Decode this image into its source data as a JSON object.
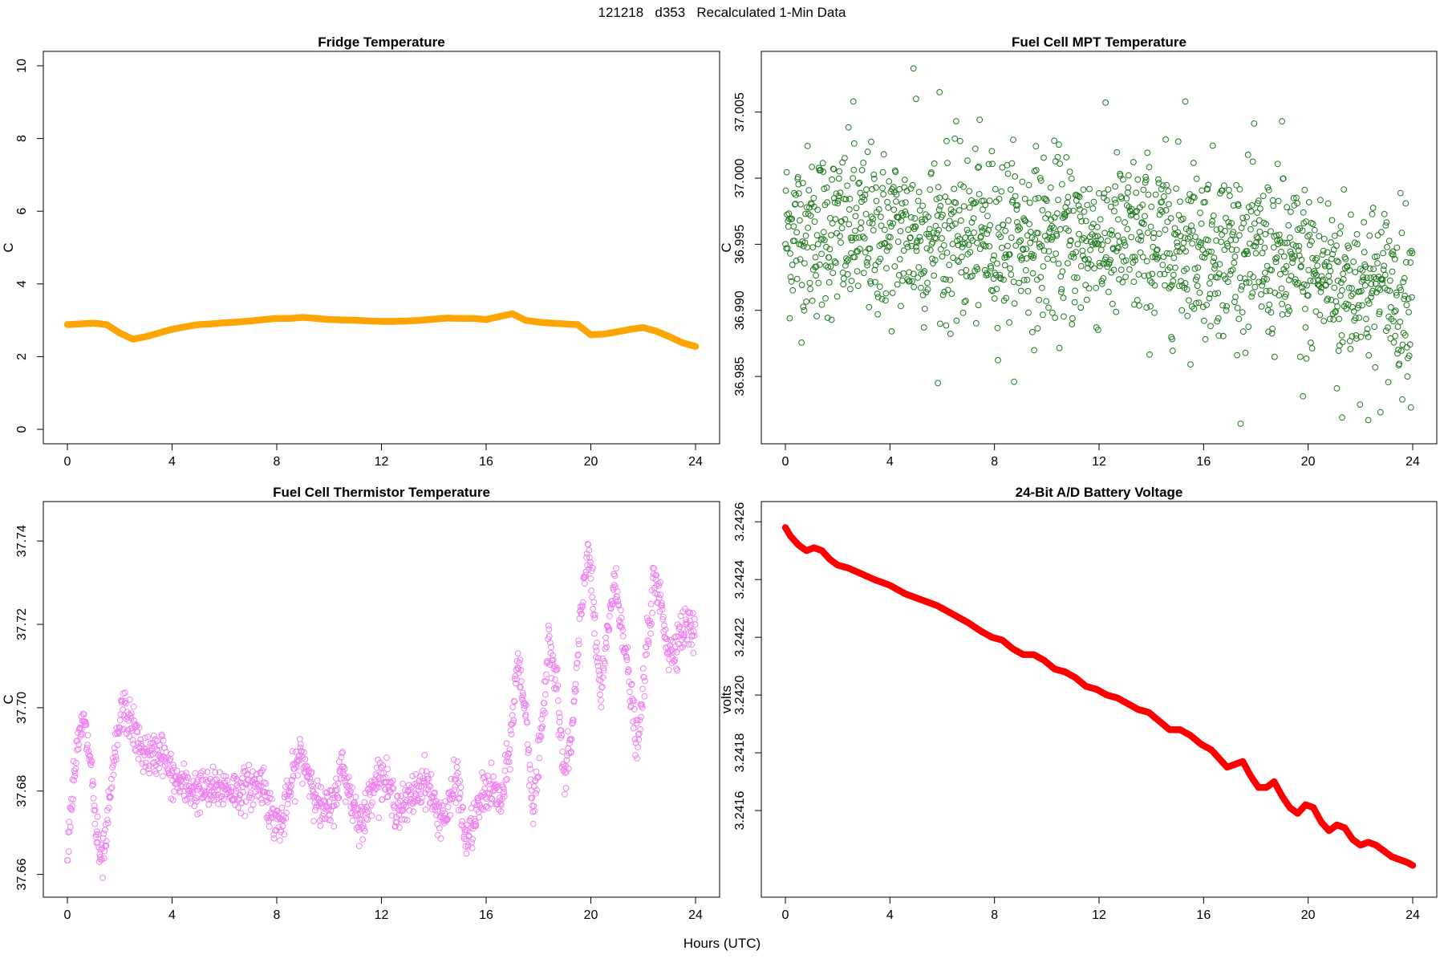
{
  "figure": {
    "title": "121218   d353   Recalculated 1-Min Data",
    "xlabel": "Hours (UTC)"
  },
  "chart_data": [
    {
      "type": "line",
      "title": "Fridge Temperature",
      "xlabel": "",
      "ylabel": "C",
      "xlim": [
        0,
        24
      ],
      "ylim": [
        0,
        10
      ],
      "xticks": [
        0,
        4,
        8,
        12,
        16,
        20,
        24
      ],
      "yticks": [
        0,
        2,
        4,
        6,
        8,
        10
      ],
      "ytick_labels": [
        "0",
        "2",
        "4",
        "6",
        "8",
        "10"
      ],
      "color": "#FFA500",
      "marker": "filled",
      "x": [
        0,
        0.5,
        1,
        1.5,
        2,
        2.5,
        3,
        3.5,
        4,
        4.5,
        5,
        5.5,
        6,
        6.5,
        7,
        7.5,
        8,
        8.5,
        9,
        9.5,
        10,
        10.5,
        11,
        11.5,
        12,
        12.5,
        13,
        13.5,
        14,
        14.5,
        15,
        15.5,
        16,
        16.5,
        17,
        17.5,
        18,
        18.5,
        19,
        19.5,
        20,
        20.5,
        21,
        21.5,
        22,
        22.5,
        23,
        23.5,
        24
      ],
      "y": [
        2.88,
        2.9,
        2.92,
        2.88,
        2.65,
        2.48,
        2.55,
        2.65,
        2.75,
        2.82,
        2.88,
        2.9,
        2.93,
        2.95,
        2.98,
        3.02,
        3.05,
        3.05,
        3.08,
        3.05,
        3.02,
        3.01,
        3.0,
        2.98,
        2.97,
        2.97,
        2.98,
        3.0,
        3.03,
        3.06,
        3.05,
        3.05,
        3.02,
        3.1,
        3.18,
        3.0,
        2.95,
        2.92,
        2.9,
        2.88,
        2.6,
        2.62,
        2.68,
        2.75,
        2.8,
        2.7,
        2.55,
        2.38,
        2.28
      ]
    },
    {
      "type": "scatter",
      "title": "Fuel Cell MPT Temperature",
      "xlabel": "",
      "ylabel": "C",
      "xlim": [
        0,
        24
      ],
      "ylim": [
        36.981,
        37.0085
      ],
      "xticks": [
        0,
        4,
        8,
        12,
        16,
        20,
        24
      ],
      "yticks": [
        36.985,
        36.99,
        36.995,
        37.0,
        37.005
      ],
      "ytick_labels": [
        "36.985",
        "36.990",
        "36.995",
        "37.000",
        "37.005"
      ],
      "color": "#1F7A1F",
      "marker": "open-circle",
      "points_per_hour": 60,
      "series_description": "noisy 1-minute readings; mean about 36.996 in hours 0-16, declining to about 36.991 by hour 24; spread about +/-0.005",
      "trend_anchors": {
        "x": [
          0,
          16,
          24
        ],
        "y": [
          36.996,
          36.995,
          36.991
        ]
      },
      "noise_sd": 0.0032,
      "extremes": [
        [
          4.9,
          37.0083
        ],
        [
          5.0,
          37.006
        ],
        [
          5.9,
          37.0065
        ],
        [
          2.6,
          37.0058
        ],
        [
          15.3,
          37.0058
        ],
        [
          19.0,
          37.0043
        ],
        [
          21.3,
          36.9819
        ],
        [
          22.3,
          36.9817
        ],
        [
          19.8,
          36.9835
        ],
        [
          21.1,
          36.9841
        ]
      ]
    },
    {
      "type": "scatter",
      "title": "Fuel Cell Thermistor Temperature",
      "xlabel": "",
      "ylabel": "C",
      "xlim": [
        0,
        24
      ],
      "ylim": [
        37.658,
        37.746
      ],
      "xticks": [
        0,
        4,
        8,
        12,
        16,
        20,
        24
      ],
      "yticks": [
        37.66,
        37.68,
        37.7,
        37.72,
        37.74
      ],
      "ytick_labels": [
        "37.66",
        "37.68",
        "37.70",
        "37.72",
        "37.74"
      ],
      "color": "#EE82EE",
      "marker": "open-circle",
      "points_per_hour": 60,
      "x": [
        0,
        0.3,
        0.6,
        0.9,
        1.1,
        1.3,
        1.5,
        1.8,
        2.1,
        2.4,
        2.8,
        3.2,
        3.6,
        4.0,
        4.5,
        5.0,
        5.5,
        6.0,
        6.5,
        7.0,
        7.5,
        7.8,
        8.2,
        8.6,
        8.9,
        9.3,
        9.7,
        10.1,
        10.5,
        10.9,
        11.3,
        11.7,
        12.1,
        12.5,
        12.9,
        13.3,
        13.7,
        14.1,
        14.5,
        14.9,
        15.2,
        15.6,
        15.9,
        16.3,
        16.6,
        16.9,
        17.2,
        17.5,
        17.8,
        18.1,
        18.4,
        18.7,
        19.0,
        19.3,
        19.6,
        19.9,
        20.2,
        20.4,
        20.7,
        20.9,
        21.2,
        21.5,
        21.8,
        22.1,
        22.4,
        22.7,
        23.0,
        23.4,
        23.8,
        24
      ],
      "y": [
        37.667,
        37.687,
        37.697,
        37.687,
        37.67,
        37.662,
        37.67,
        37.688,
        37.7,
        37.697,
        37.69,
        37.688,
        37.69,
        37.683,
        37.681,
        37.68,
        37.68,
        37.681,
        37.68,
        37.681,
        37.682,
        37.674,
        37.672,
        37.683,
        37.689,
        37.683,
        37.675,
        37.676,
        37.686,
        37.677,
        37.672,
        37.683,
        37.683,
        37.677,
        37.676,
        37.68,
        37.683,
        37.675,
        37.674,
        37.684,
        37.668,
        37.673,
        37.68,
        37.68,
        37.677,
        37.69,
        37.711,
        37.7,
        37.675,
        37.692,
        37.718,
        37.705,
        37.682,
        37.695,
        37.72,
        37.74,
        37.715,
        37.702,
        37.722,
        37.73,
        37.72,
        37.704,
        37.69,
        37.712,
        37.73,
        37.725,
        37.712,
        37.718,
        37.72,
        37.716
      ],
      "noise_sd": 0.0025
    },
    {
      "type": "line",
      "title": "24-Bit A/D Battery Voltage",
      "xlabel": "",
      "ylabel": "volts",
      "xlim": [
        0,
        24
      ],
      "ylim": [
        3.24135,
        3.24262
      ],
      "xticks": [
        0,
        4,
        8,
        12,
        16,
        20,
        24
      ],
      "yticks": [
        3.2416,
        3.2418,
        3.242,
        3.2422,
        3.2424,
        3.2426
      ],
      "ytick_labels": [
        "3.2416",
        "3.2418",
        "3.2420",
        "3.2422",
        "3.2424",
        "3.2426"
      ],
      "color": "#FF0000",
      "marker": "filled",
      "x": [
        0,
        0.2,
        0.5,
        0.8,
        1.1,
        1.4,
        1.7,
        2.0,
        2.4,
        2.9,
        3.4,
        4.0,
        4.6,
        5.2,
        5.8,
        6.4,
        7.0,
        7.5,
        7.9,
        8.3,
        8.7,
        9.1,
        9.5,
        9.9,
        10.3,
        10.7,
        11.1,
        11.5,
        11.9,
        12.3,
        12.7,
        13.1,
        13.5,
        13.9,
        14.3,
        14.7,
        15.1,
        15.5,
        15.9,
        16.3,
        16.6,
        16.9,
        17.2,
        17.5,
        17.8,
        18.1,
        18.4,
        18.7,
        19.0,
        19.3,
        19.6,
        19.9,
        20.2,
        20.5,
        20.8,
        21.1,
        21.4,
        21.7,
        22.0,
        22.3,
        22.6,
        22.9,
        23.2,
        23.5,
        23.8,
        24.0
      ],
      "y": [
        3.24258,
        3.24255,
        3.24252,
        3.2425,
        3.24251,
        3.2425,
        3.24247,
        3.24245,
        3.24244,
        3.24242,
        3.2424,
        3.24238,
        3.24235,
        3.24233,
        3.24231,
        3.24228,
        3.24225,
        3.24222,
        3.2422,
        3.24219,
        3.24216,
        3.24214,
        3.24214,
        3.24212,
        3.24209,
        3.24208,
        3.24206,
        3.24203,
        3.24202,
        3.242,
        3.24199,
        3.24197,
        3.24195,
        3.24194,
        3.24191,
        3.24188,
        3.24188,
        3.24186,
        3.24183,
        3.24181,
        3.24178,
        3.24175,
        3.24176,
        3.24177,
        3.24172,
        3.24168,
        3.24168,
        3.2417,
        3.24165,
        3.24161,
        3.24159,
        3.24162,
        3.24161,
        3.24156,
        3.24153,
        3.24155,
        3.24154,
        3.2415,
        3.24148,
        3.24149,
        3.24148,
        3.24146,
        3.24144,
        3.24143,
        3.24142,
        3.24141
      ]
    }
  ]
}
